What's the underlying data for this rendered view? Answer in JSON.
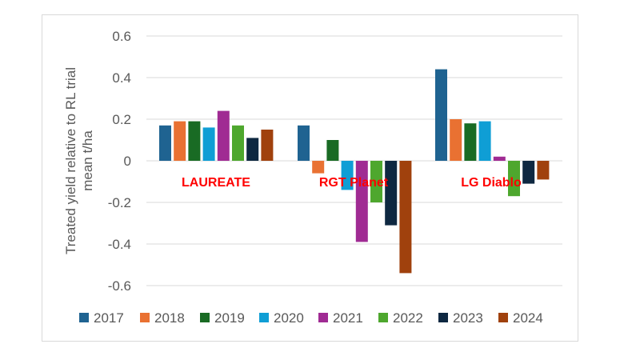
{
  "chart_data": {
    "type": "bar",
    "ylabel": "Treated yield relative to RL trial mean t/ha",
    "ylim": [
      -0.6,
      0.6
    ],
    "yticks": [
      "0.6",
      "0.4",
      "0.2",
      "0",
      "-0.2",
      "-0.4",
      "-0.6"
    ],
    "ytick_values": [
      0.6,
      0.4,
      0.2,
      0,
      -0.2,
      -0.4,
      -0.6
    ],
    "grid": true,
    "legend_position": "bottom",
    "categories": [
      "LAUREATE",
      "RGT Planet",
      "LG Diablo"
    ],
    "category_label_color": "#ff0000",
    "series": [
      {
        "name": "2017",
        "color": "#1f6391",
        "values": [
          0.17,
          0.17,
          0.44
        ]
      },
      {
        "name": "2018",
        "color": "#e97132",
        "values": [
          0.19,
          -0.06,
          0.2
        ]
      },
      {
        "name": "2019",
        "color": "#196b24",
        "values": [
          0.19,
          0.1,
          0.18
        ]
      },
      {
        "name": "2020",
        "color": "#0f9ed5",
        "values": [
          0.16,
          -0.14,
          0.19
        ]
      },
      {
        "name": "2021",
        "color": "#a02b93",
        "values": [
          0.24,
          -0.39,
          0.02
        ]
      },
      {
        "name": "2022",
        "color": "#4ea72e",
        "values": [
          0.17,
          -0.2,
          -0.17
        ]
      },
      {
        "name": "2023",
        "color": "#0e2841",
        "values": [
          0.11,
          -0.31,
          -0.11
        ]
      },
      {
        "name": "2024",
        "color": "#a0410d",
        "values": [
          0.15,
          -0.54,
          -0.09
        ]
      }
    ]
  }
}
